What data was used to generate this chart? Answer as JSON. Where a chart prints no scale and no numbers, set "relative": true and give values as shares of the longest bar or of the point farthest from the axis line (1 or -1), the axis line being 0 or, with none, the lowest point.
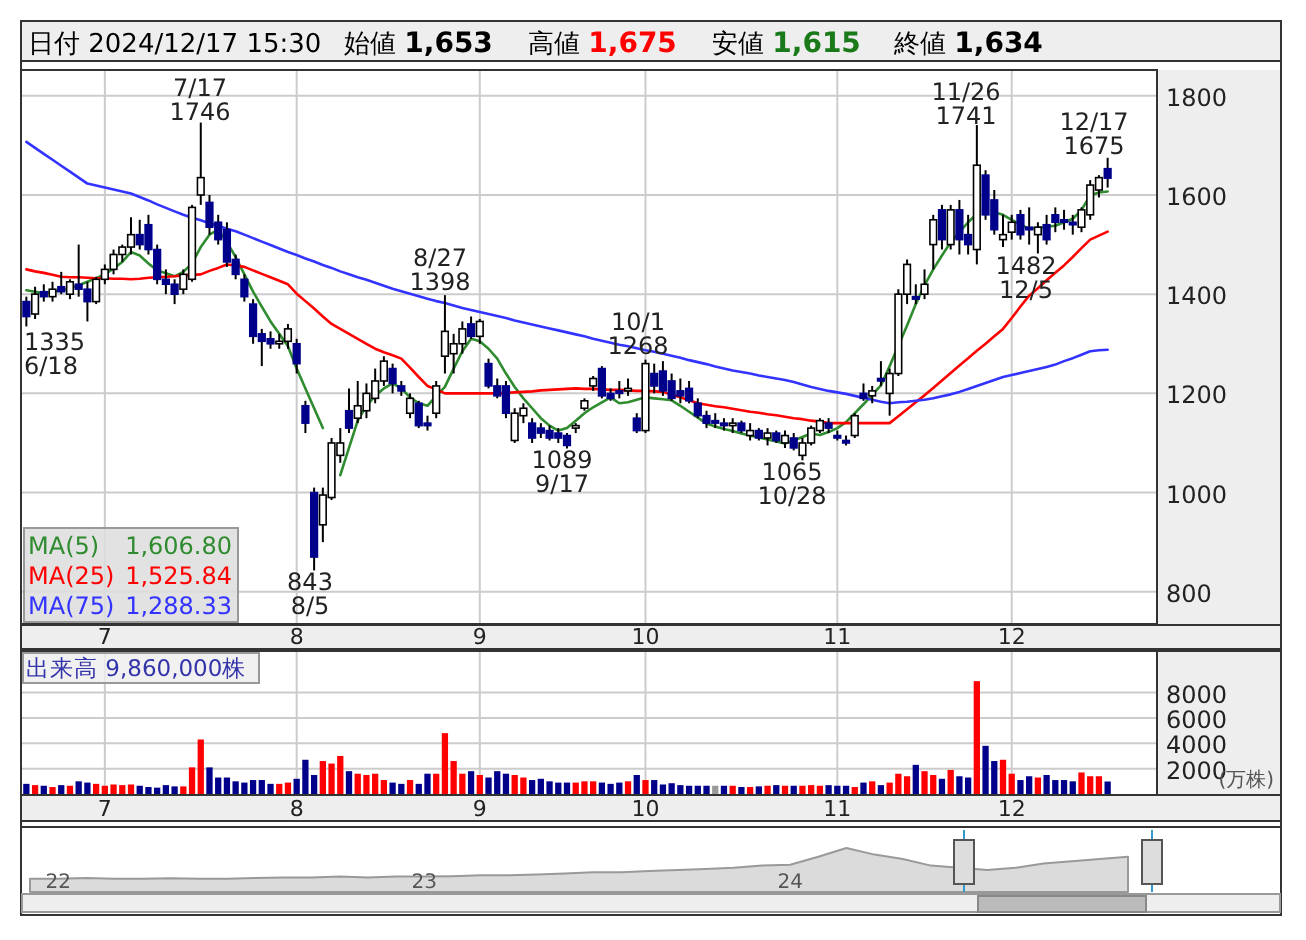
{
  "chart_data": [
    {
      "type": "candlestick",
      "categories": [
        null,
        null,
        null,
        null,
        null,
        null,
        null,
        null,
        null,
        "7",
        null,
        null,
        null,
        null,
        null,
        null,
        null,
        null,
        null,
        null,
        null,
        null,
        null,
        null,
        null,
        null,
        null,
        null,
        null,
        null,
        null,
        "8",
        null,
        null,
        null,
        null,
        null,
        null,
        null,
        null,
        null,
        null,
        null,
        null,
        null,
        null,
        null,
        null,
        null,
        null,
        null,
        null,
        "9",
        null,
        null,
        null,
        null,
        null,
        null,
        null,
        null,
        null,
        null,
        null,
        null,
        null,
        null,
        null,
        null,
        null,
        null,
        "10",
        null,
        null,
        null,
        null,
        null,
        null,
        null,
        null,
        null,
        null,
        null,
        null,
        null,
        null,
        null,
        null,
        null,
        null,
        null,
        null,
        null,
        "11",
        null,
        null,
        null,
        null,
        null,
        null,
        null,
        null,
        null,
        null,
        null,
        null,
        null,
        null,
        null,
        null,
        null,
        null,
        null,
        "12",
        null,
        null,
        null,
        null,
        null,
        null,
        null,
        null,
        null,
        null,
        null
      ],
      "ohlc": [
        [
          1385,
          1395,
          1335,
          1355
        ],
        [
          1360,
          1415,
          1350,
          1400
        ],
        [
          1405,
          1420,
          1385,
          1395
        ],
        [
          1395,
          1425,
          1385,
          1410
        ],
        [
          1415,
          1445,
          1400,
          1405
        ],
        [
          1400,
          1430,
          1390,
          1425
        ],
        [
          1420,
          1500,
          1395,
          1410
        ],
        [
          1410,
          1425,
          1345,
          1385
        ],
        [
          1385,
          1435,
          1380,
          1430
        ],
        [
          1430,
          1460,
          1420,
          1450
        ],
        [
          1450,
          1490,
          1440,
          1480
        ],
        [
          1480,
          1500,
          1465,
          1495
        ],
        [
          1495,
          1555,
          1480,
          1520
        ],
        [
          1520,
          1550,
          1490,
          1500
        ],
        [
          1540,
          1560,
          1480,
          1490
        ],
        [
          1490,
          1500,
          1420,
          1430
        ],
        [
          1430,
          1450,
          1400,
          1420
        ],
        [
          1420,
          1430,
          1380,
          1400
        ],
        [
          1410,
          1450,
          1400,
          1440
        ],
        [
          1430,
          1580,
          1425,
          1575
        ],
        [
          1600,
          1746,
          1580,
          1635
        ],
        [
          1585,
          1600,
          1520,
          1535
        ],
        [
          1545,
          1560,
          1500,
          1510
        ],
        [
          1530,
          1545,
          1455,
          1465
        ],
        [
          1470,
          1480,
          1430,
          1440
        ],
        [
          1430,
          1440,
          1385,
          1395
        ],
        [
          1380,
          1390,
          1300,
          1315
        ],
        [
          1320,
          1330,
          1255,
          1305
        ],
        [
          1310,
          1325,
          1290,
          1300
        ],
        [
          1300,
          1320,
          1290,
          1305
        ],
        [
          1305,
          1340,
          1290,
          1330
        ],
        [
          1300,
          1310,
          1240,
          1260
        ],
        [
          1175,
          1185,
          1120,
          1140
        ],
        [
          1000,
          1010,
          843,
          870
        ],
        [
          935,
          1010,
          900,
          995
        ],
        [
          990,
          1110,
          985,
          1100
        ],
        [
          1075,
          1130,
          1060,
          1100
        ],
        [
          1165,
          1210,
          1120,
          1130
        ],
        [
          1150,
          1225,
          1140,
          1175
        ],
        [
          1165,
          1220,
          1150,
          1200
        ],
        [
          1190,
          1250,
          1180,
          1225
        ],
        [
          1225,
          1275,
          1215,
          1265
        ],
        [
          1250,
          1260,
          1200,
          1220
        ],
        [
          1215,
          1225,
          1195,
          1205
        ],
        [
          1160,
          1200,
          1150,
          1190
        ],
        [
          1180,
          1185,
          1130,
          1135
        ],
        [
          1140,
          1155,
          1125,
          1135
        ],
        [
          1160,
          1225,
          1150,
          1215
        ],
        [
          1275,
          1398,
          1240,
          1325
        ],
        [
          1280,
          1320,
          1240,
          1300
        ],
        [
          1300,
          1345,
          1280,
          1330
        ],
        [
          1340,
          1355,
          1310,
          1315
        ],
        [
          1315,
          1350,
          1300,
          1345
        ],
        [
          1260,
          1270,
          1210,
          1215
        ],
        [
          1215,
          1230,
          1190,
          1195
        ],
        [
          1215,
          1225,
          1150,
          1160
        ],
        [
          1105,
          1170,
          1100,
          1160
        ],
        [
          1155,
          1180,
          1140,
          1170
        ],
        [
          1140,
          1150,
          1100,
          1110
        ],
        [
          1130,
          1140,
          1110,
          1120
        ],
        [
          1125,
          1135,
          1105,
          1110
        ],
        [
          1120,
          1130,
          1100,
          1110
        ],
        [
          1115,
          1120,
          1089,
          1095
        ],
        [
          1130,
          1140,
          1120,
          1135
        ],
        [
          1170,
          1190,
          1165,
          1185
        ],
        [
          1215,
          1235,
          1205,
          1230
        ],
        [
          1250,
          1255,
          1190,
          1195
        ],
        [
          1200,
          1210,
          1185,
          1190
        ],
        [
          1205,
          1225,
          1190,
          1200
        ],
        [
          1205,
          1230,
          1195,
          1210
        ],
        [
          1150,
          1160,
          1120,
          1125
        ],
        [
          1125,
          1268,
          1120,
          1260
        ],
        [
          1240,
          1260,
          1200,
          1215
        ],
        [
          1245,
          1265,
          1195,
          1205
        ],
        [
          1225,
          1240,
          1185,
          1190
        ],
        [
          1205,
          1230,
          1180,
          1195
        ],
        [
          1210,
          1225,
          1180,
          1185
        ],
        [
          1180,
          1190,
          1150,
          1155
        ],
        [
          1155,
          1165,
          1130,
          1140
        ],
        [
          1145,
          1160,
          1130,
          1140
        ],
        [
          1140,
          1150,
          1125,
          1135
        ],
        [
          1135,
          1150,
          1120,
          1140
        ],
        [
          1140,
          1145,
          1120,
          1125
        ],
        [
          1115,
          1140,
          1105,
          1125
        ],
        [
          1125,
          1130,
          1105,
          1110
        ],
        [
          1110,
          1130,
          1095,
          1120
        ],
        [
          1120,
          1125,
          1100,
          1105
        ],
        [
          1100,
          1125,
          1090,
          1115
        ],
        [
          1110,
          1120,
          1085,
          1090
        ],
        [
          1075,
          1110,
          1065,
          1100
        ],
        [
          1100,
          1135,
          1095,
          1130
        ],
        [
          1125,
          1150,
          1120,
          1145
        ],
        [
          1140,
          1150,
          1120,
          1130
        ],
        [
          1115,
          1125,
          1105,
          1110
        ],
        [
          1105,
          1115,
          1095,
          1100
        ],
        [
          1115,
          1160,
          1110,
          1155
        ],
        [
          1200,
          1220,
          1185,
          1190
        ],
        [
          1195,
          1215,
          1180,
          1205
        ],
        [
          1230,
          1265,
          1215,
          1225
        ],
        [
          1200,
          1250,
          1155,
          1240
        ],
        [
          1240,
          1410,
          1235,
          1400
        ],
        [
          1400,
          1470,
          1380,
          1460
        ],
        [
          1395,
          1420,
          1380,
          1390
        ],
        [
          1400,
          1450,
          1390,
          1420
        ],
        [
          1500,
          1560,
          1450,
          1550
        ],
        [
          1570,
          1580,
          1490,
          1510
        ],
        [
          1500,
          1580,
          1490,
          1570
        ],
        [
          1570,
          1590,
          1480,
          1510
        ],
        [
          1520,
          1560,
          1480,
          1500
        ],
        [
          1490,
          1741,
          1460,
          1660
        ],
        [
          1640,
          1650,
          1550,
          1560
        ],
        [
          1590,
          1610,
          1520,
          1530
        ],
        [
          1510,
          1560,
          1495,
          1520
        ],
        [
          1525,
          1560,
          1510,
          1545
        ],
        [
          1560,
          1570,
          1510,
          1520
        ],
        [
          1535,
          1575,
          1500,
          1530
        ],
        [
          1520,
          1545,
          1482,
          1535
        ],
        [
          1540,
          1560,
          1500,
          1510
        ],
        [
          1560,
          1575,
          1525,
          1545
        ],
        [
          1550,
          1570,
          1530,
          1545
        ],
        [
          1545,
          1560,
          1520,
          1540
        ],
        [
          1535,
          1575,
          1525,
          1570
        ],
        [
          1560,
          1630,
          1550,
          1620
        ],
        [
          1610,
          1640,
          1595,
          1635
        ],
        [
          1653,
          1675,
          1615,
          1634
        ]
      ],
      "colors": [
        "#00008b",
        "#ffffff",
        "#00008b",
        "#ffffff",
        "#00008b",
        "#ffffff",
        "#00008b",
        "#00008b",
        "#ffffff",
        "#ffffff",
        "#ffffff",
        "#ffffff",
        "#ffffff",
        "#00008b",
        "#00008b",
        "#00008b",
        "#00008b",
        "#00008b",
        "#ffffff",
        "#ffffff",
        "#ffffff",
        "#00008b",
        "#00008b",
        "#00008b",
        "#00008b",
        "#00008b",
        "#00008b",
        "#00008b",
        "#00008b",
        "#ffffff",
        "#ffffff",
        "#00008b",
        "#00008b",
        "#00008b",
        "#ffffff",
        "#ffffff",
        "#ffffff",
        "#00008b",
        "#ffffff",
        "#ffffff",
        "#ffffff",
        "#ffffff",
        "#00008b",
        "#00008b",
        "#ffffff",
        "#00008b",
        "#00008b",
        "#ffffff",
        "#ffffff",
        "#ffffff",
        "#ffffff",
        "#00008b",
        "#ffffff",
        "#00008b",
        "#00008b",
        "#00008b",
        "#ffffff",
        "#ffffff",
        "#00008b",
        "#00008b",
        "#00008b",
        "#00008b",
        "#00008b",
        "#ffffff",
        "#ffffff",
        "#ffffff",
        "#00008b",
        "#00008b",
        "#00008b",
        "#ffffff",
        "#00008b",
        "#ffffff",
        "#00008b",
        "#00008b",
        "#00008b",
        "#00008b",
        "#00008b",
        "#00008b",
        "#00008b",
        "#00008b",
        "#00008b",
        "#ffffff",
        "#00008b",
        "#ffffff",
        "#00008b",
        "#ffffff",
        "#00008b",
        "#ffffff",
        "#00008b",
        "#ffffff",
        "#ffffff",
        "#ffffff",
        "#00008b",
        "#00008b",
        "#00008b",
        "#ffffff",
        "#00008b",
        "#ffffff",
        "#00008b",
        "#ffffff",
        "#ffffff",
        "#ffffff",
        "#00008b",
        "#ffffff",
        "#ffffff",
        "#00008b",
        "#ffffff",
        "#00008b",
        "#00008b",
        "#ffffff",
        "#00008b",
        "#00008b",
        "#ffffff",
        "#ffffff",
        "#00008b",
        "#00008b",
        "#ffffff",
        "#00008b",
        "#00008b",
        "#00008b",
        "#00008b",
        "#ffffff",
        "#ffffff",
        "#ffffff",
        "#00008b"
      ],
      "series": [
        {
          "name": "MA(5)",
          "type": "line",
          "color": "#2e8b2e",
          "values": [
            1408,
            1405,
            1402,
            1405,
            1408,
            1412,
            1418,
            1425,
            1432,
            1440,
            1452,
            1465,
            1485,
            1478,
            1462,
            1448,
            1442,
            1436,
            1445,
            1462,
            1495,
            1520,
            1530,
            1505,
            1475,
            1440,
            1405,
            1375,
            1345,
            1320,
            1295,
            1250,
            1210,
            1170,
            1130,
            null,
            1035,
            1090,
            1145,
            1175,
            1195,
            1210,
            1220,
            1210,
            1192,
            1180,
            1175,
            1195,
            1213,
            1250,
            1285,
            1310,
            1305,
            1290,
            1270,
            1240,
            1213,
            1190,
            1170,
            1150,
            1135,
            1125,
            1130,
            1145,
            1160,
            1172,
            1182,
            1192,
            1180,
            1182,
            1187,
            1192,
            1190,
            1188,
            1186,
            1175,
            1163,
            1151,
            1139,
            1133,
            1128,
            1124,
            1119,
            1115,
            1111,
            1107,
            1103,
            1099,
            1105,
            1112,
            1119,
            1116,
            1122,
            1130,
            1142,
            1160,
            1178,
            1197,
            1216,
            1255,
            1296,
            1337,
            1380,
            1418,
            1450,
            1478,
            1505,
            1525,
            1545,
            1562,
            null,
            1565,
            1560,
            1550,
            1540,
            1532,
            1534,
            1536,
            1538,
            1545,
            1552,
            1570,
            1599,
            1605,
            1607
          ]
        },
        {
          "name": "MA(25)",
          "type": "line",
          "color": "#ff0000",
          "values": [
            1450,
            1446,
            1443,
            1439,
            1435,
            1434,
            1434,
            1433,
            1432,
            1432,
            1431,
            1431,
            1430,
            1431,
            1433,
            1434,
            1435,
            1436,
            1438,
            1439,
            1440,
            1447,
            1453,
            1460,
            1458,
            1455,
            1448,
            1441,
            1434,
            1427,
            1420,
            1401,
            1386,
            1371,
            1355,
            1340,
            1330,
            1320,
            1310,
            1300,
            1290,
            1283,
            1277,
            1270,
            1252,
            1233,
            1215,
            1208,
            1200,
            1200,
            1200,
            1200,
            1200,
            1200,
            1200,
            1201,
            1202,
            1203,
            1204,
            1206,
            1207,
            1208,
            1209,
            1210,
            1209,
            1209,
            1208,
            1207,
            1207,
            1206,
            1205,
            1205,
            1204,
            1203,
            1197,
            1192,
            1186,
            1180,
            1177,
            1174,
            1172,
            1169,
            1166,
            1163,
            1161,
            1158,
            1156,
            1153,
            1150,
            1148,
            1145,
            1143,
            1140,
            1140,
            1140,
            1140,
            1140,
            1140,
            1140,
            1140,
            1154,
            1168,
            1182,
            1196,
            1211,
            1226,
            1241,
            1256,
            1271,
            1286,
            1300,
            1315,
            1330,
            1352,
            1375,
            1397,
            1412,
            1428,
            1443,
            1458,
            1475,
            1493,
            1510,
            1518,
            1526
          ]
        },
        {
          "name": "MA(75)",
          "type": "line",
          "color": "#3333ff",
          "values": [
            1707,
            1695,
            1683,
            1671,
            1659,
            1647,
            1635,
            1623,
            1619,
            1615,
            1611,
            1607,
            1603,
            1596,
            1589,
            1581,
            1574,
            1567,
            1560,
            1554,
            1549,
            1543,
            1538,
            1532,
            1527,
            1520,
            1513,
            1506,
            1499,
            1492,
            1485,
            1479,
            1472,
            1466,
            1459,
            1453,
            1446,
            1440,
            1434,
            1429,
            1423,
            1417,
            1411,
            1406,
            1401,
            1396,
            1391,
            1386,
            1382,
            1377,
            1372,
            1368,
            1364,
            1360,
            1356,
            1352,
            1347,
            1343,
            1339,
            1335,
            1331,
            1327,
            1323,
            1319,
            1315,
            1310,
            1306,
            1302,
            1298,
            1295,
            1291,
            1287,
            1284,
            1280,
            1276,
            1272,
            1267,
            1263,
            1259,
            1254,
            1250,
            1246,
            1243,
            1240,
            1236,
            1233,
            1230,
            1227,
            1223,
            1218,
            1213,
            1209,
            1205,
            1202,
            1199,
            1195,
            1191,
            1187,
            1183,
            1180,
            1182,
            1183,
            1185,
            1187,
            1190,
            1194,
            1198,
            1203,
            1209,
            1215,
            1221,
            1227,
            1233,
            1237,
            1241,
            1245,
            1249,
            1253,
            1258,
            1265,
            1271,
            1278,
            1285,
            1287,
            1288
          ]
        }
      ],
      "ylim": [
        735,
        1852
      ],
      "yticks": [
        800,
        1000,
        1200,
        1400,
        1600,
        1800
      ],
      "grid": true,
      "legend": "bottom left",
      "annotations": [
        "日付 2024/12/17 15:30",
        "始値 1,653",
        "高値 1,675",
        "安値 1,615",
        "終値 1,634",
        "1,606.80",
        "1,525.84",
        "1,288.33",
        "1335\n6/18",
        "7/17\n1746",
        "843\n8/5",
        "8/27\n1398",
        "1089\n9/17",
        "10/1\n1268",
        "1065\n10/28",
        "11/26\n1741",
        "1482\n12/5",
        "12/17\n1675"
      ]
    },
    {
      "type": "bar",
      "title": "出来高 9,860,000株",
      "ylabel": "(万株)",
      "categories": [
        null,
        null,
        null,
        null,
        null,
        null,
        null,
        null,
        null,
        "7",
        null,
        null,
        null,
        null,
        null,
        null,
        null,
        null,
        null,
        null,
        null,
        null,
        null,
        null,
        null,
        null,
        null,
        null,
        null,
        null,
        null,
        "8",
        null,
        null,
        null,
        null,
        null,
        null,
        null,
        null,
        null,
        null,
        null,
        null,
        null,
        null,
        null,
        null,
        null,
        null,
        null,
        null,
        "9",
        null,
        null,
        null,
        null,
        null,
        null,
        null,
        null,
        null,
        null,
        null,
        null,
        null,
        null,
        null,
        null,
        null,
        null,
        "10",
        null,
        null,
        null,
        null,
        null,
        null,
        null,
        null,
        null,
        null,
        null,
        null,
        null,
        null,
        null,
        null,
        null,
        null,
        null,
        null,
        null,
        "11",
        null,
        null,
        null,
        null,
        null,
        null,
        null,
        null,
        null,
        null,
        null,
        null,
        null,
        null,
        null,
        null,
        null,
        null,
        null,
        "12",
        null,
        null,
        null,
        null,
        null,
        null,
        null,
        null,
        null,
        null,
        null
      ],
      "values": [
        800,
        700,
        650,
        550,
        700,
        650,
        1000,
        900,
        800,
        650,
        750,
        700,
        750,
        650,
        550,
        500,
        700,
        600,
        600,
        2100,
        4300,
        2100,
        1300,
        1300,
        1000,
        900,
        1100,
        1100,
        800,
        800,
        900,
        1200,
        2700,
        1500,
        2600,
        2400,
        3000,
        1800,
        1600,
        1500,
        1600,
        1100,
        900,
        800,
        1100,
        800,
        1600,
        1600,
        4800,
        2600,
        1600,
        1800,
        1500,
        1300,
        1800,
        1600,
        1500,
        1300,
        1100,
        1200,
        1000,
        900,
        900,
        900,
        1000,
        1000,
        900,
        800,
        900,
        1000,
        1500,
        1100,
        1100,
        750,
        850,
        700,
        650,
        650,
        650,
        650,
        650,
        650,
        550,
        550,
        600,
        650,
        700,
        650,
        650,
        650,
        700,
        650,
        700,
        650,
        650,
        550,
        900,
        1000,
        700,
        900,
        1600,
        1400,
        2300,
        1800,
        1500,
        1200,
        1900,
        1400,
        1300,
        8900,
        3800,
        2600,
        2700,
        1600,
        1100,
        1400,
        1300,
        1500,
        1100,
        1100,
        1000,
        1700,
        1400,
        1400,
        986
      ],
      "colors": [
        "#00008b",
        "#ff0000",
        "#00008b",
        "#ff0000",
        "#00008b",
        "#ff0000",
        "#00008b",
        "#00008b",
        "#ff0000",
        "#ff0000",
        "#ff0000",
        "#ff0000",
        "#ff0000",
        "#00008b",
        "#00008b",
        "#00008b",
        "#00008b",
        "#00008b",
        "#ff0000",
        "#ff0000",
        "#ff0000",
        "#00008b",
        "#00008b",
        "#00008b",
        "#00008b",
        "#00008b",
        "#00008b",
        "#00008b",
        "#00008b",
        "#ff0000",
        "#ff0000",
        "#00008b",
        "#00008b",
        "#00008b",
        "#ff0000",
        "#ff0000",
        "#ff0000",
        "#00008b",
        "#ff0000",
        "#ff0000",
        "#ff0000",
        "#ff0000",
        "#00008b",
        "#00008b",
        "#ff0000",
        "#00008b",
        "#00008b",
        "#ff0000",
        "#ff0000",
        "#ff0000",
        "#ff0000",
        "#00008b",
        "#ff0000",
        "#00008b",
        "#00008b",
        "#00008b",
        "#ff0000",
        "#ff0000",
        "#00008b",
        "#00008b",
        "#00008b",
        "#00008b",
        "#00008b",
        "#ff0000",
        "#ff0000",
        "#ff0000",
        "#00008b",
        "#00008b",
        "#00008b",
        "#ff0000",
        "#00008b",
        "#ff0000",
        "#00008b",
        "#00008b",
        "#00008b",
        "#00008b",
        "#00008b",
        "#00008b",
        "#00008b",
        "#999999",
        "#00008b",
        "#ff0000",
        "#00008b",
        "#ff0000",
        "#00008b",
        "#ff0000",
        "#00008b",
        "#ff0000",
        "#00008b",
        "#ff0000",
        "#ff0000",
        "#ff0000",
        "#00008b",
        "#00008b",
        "#00008b",
        "#ff0000",
        "#00008b",
        "#ff0000",
        "#00008b",
        "#ff0000",
        "#ff0000",
        "#ff0000",
        "#00008b",
        "#ff0000",
        "#ff0000",
        "#00008b",
        "#ff0000",
        "#00008b",
        "#00008b",
        "#ff0000",
        "#00008b",
        "#00008b",
        "#ff0000",
        "#ff0000",
        "#00008b",
        "#00008b",
        "#ff0000",
        "#00008b",
        "#00008b",
        "#00008b",
        "#00008b",
        "#ff0000",
        "#ff0000",
        "#ff0000",
        "#00008b"
      ],
      "ylim": [
        0,
        11200
      ],
      "yticks": [
        2000,
        4000,
        6000,
        8000
      ],
      "grid": true
    },
    {
      "type": "area",
      "relative": true,
      "color": "#999999",
      "categories": [
        null,
        "22",
        null,
        null,
        null,
        null,
        null,
        null,
        null,
        null,
        null,
        null,
        null,
        null,
        "23",
        null,
        null,
        null,
        null,
        null,
        null,
        null,
        null,
        null,
        null,
        null,
        null,
        "24",
        null,
        null,
        null,
        null,
        null,
        null,
        null,
        null,
        null,
        null,
        null,
        null
      ],
      "values": [
        0.3,
        0.3,
        0.32,
        0.3,
        0.3,
        0.31,
        0.3,
        0.3,
        0.32,
        0.33,
        0.33,
        0.35,
        0.33,
        0.35,
        0.35,
        0.36,
        0.38,
        0.38,
        0.4,
        0.42,
        0.45,
        0.45,
        0.48,
        0.5,
        0.52,
        0.55,
        0.6,
        0.62,
        0.8,
        1.0,
        0.85,
        0.75,
        0.6,
        null,
        0.5,
        0.55,
        0.65,
        0.7,
        0.75,
        0.8
      ]
    }
  ]
}
